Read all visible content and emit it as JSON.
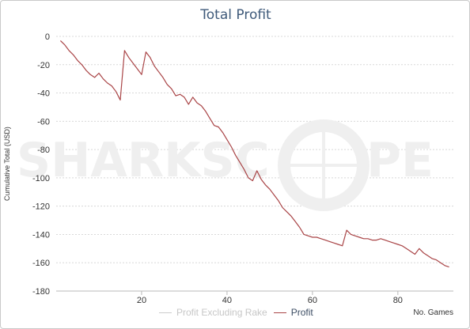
{
  "chart_data": {
    "type": "line",
    "title": "Total Profit",
    "xlabel": "No. Games",
    "ylabel": "Cumulative Total (USD)",
    "xlim": [
      0,
      93
    ],
    "ylim": [
      -180,
      0
    ],
    "xticks": [
      20,
      40,
      60,
      80
    ],
    "yticks": [
      0,
      -20,
      -40,
      -60,
      -80,
      -100,
      -120,
      -140,
      -160,
      -180
    ],
    "grid": true,
    "legend_position": "bottom",
    "series": [
      {
        "name": "Profit Excluding Rake",
        "color": "#cccccc",
        "visible": false,
        "points": []
      },
      {
        "name": "Profit",
        "color": "#a94446",
        "visible": true,
        "points": [
          [
            1,
            -3
          ],
          [
            2,
            -6
          ],
          [
            3,
            -10
          ],
          [
            4,
            -13
          ],
          [
            5,
            -17
          ],
          [
            6,
            -20
          ],
          [
            7,
            -24
          ],
          [
            8,
            -27
          ],
          [
            9,
            -29
          ],
          [
            10,
            -26
          ],
          [
            11,
            -30
          ],
          [
            12,
            -33
          ],
          [
            13,
            -35
          ],
          [
            14,
            -39
          ],
          [
            15,
            -45
          ],
          [
            16,
            -10
          ],
          [
            17,
            -15
          ],
          [
            18,
            -19
          ],
          [
            19,
            -23
          ],
          [
            20,
            -27
          ],
          [
            21,
            -11
          ],
          [
            22,
            -15
          ],
          [
            23,
            -21
          ],
          [
            24,
            -25
          ],
          [
            25,
            -29
          ],
          [
            26,
            -34
          ],
          [
            27,
            -37
          ],
          [
            28,
            -42
          ],
          [
            29,
            -41
          ],
          [
            30,
            -43
          ],
          [
            31,
            -48
          ],
          [
            32,
            -43
          ],
          [
            33,
            -47
          ],
          [
            34,
            -49
          ],
          [
            35,
            -53
          ],
          [
            36,
            -58
          ],
          [
            37,
            -63
          ],
          [
            38,
            -64
          ],
          [
            39,
            -68
          ],
          [
            40,
            -73
          ],
          [
            41,
            -78
          ],
          [
            42,
            -84
          ],
          [
            43,
            -89
          ],
          [
            44,
            -94
          ],
          [
            45,
            -100
          ],
          [
            46,
            -102
          ],
          [
            47,
            -95
          ],
          [
            48,
            -101
          ],
          [
            49,
            -105
          ],
          [
            50,
            -108
          ],
          [
            51,
            -112
          ],
          [
            52,
            -116
          ],
          [
            53,
            -121
          ],
          [
            54,
            -124
          ],
          [
            55,
            -127
          ],
          [
            56,
            -131
          ],
          [
            57,
            -135
          ],
          [
            58,
            -140
          ],
          [
            59,
            -141
          ],
          [
            60,
            -142
          ],
          [
            61,
            -142
          ],
          [
            62,
            -143
          ],
          [
            63,
            -144
          ],
          [
            64,
            -145
          ],
          [
            65,
            -146
          ],
          [
            66,
            -147
          ],
          [
            67,
            -148
          ],
          [
            68,
            -137
          ],
          [
            69,
            -140
          ],
          [
            70,
            -141
          ],
          [
            71,
            -142
          ],
          [
            72,
            -143
          ],
          [
            73,
            -143
          ],
          [
            74,
            -144
          ],
          [
            75,
            -144
          ],
          [
            76,
            -143
          ],
          [
            77,
            -144
          ],
          [
            78,
            -145
          ],
          [
            79,
            -146
          ],
          [
            80,
            -147
          ],
          [
            81,
            -148
          ],
          [
            82,
            -150
          ],
          [
            83,
            -152
          ],
          [
            84,
            -154
          ],
          [
            85,
            -150
          ],
          [
            86,
            -153
          ],
          [
            87,
            -155
          ],
          [
            88,
            -157
          ],
          [
            89,
            -158
          ],
          [
            90,
            -160
          ],
          [
            91,
            -162
          ],
          [
            92,
            -163
          ]
        ]
      }
    ]
  },
  "watermark": "SHARKSCOPE"
}
